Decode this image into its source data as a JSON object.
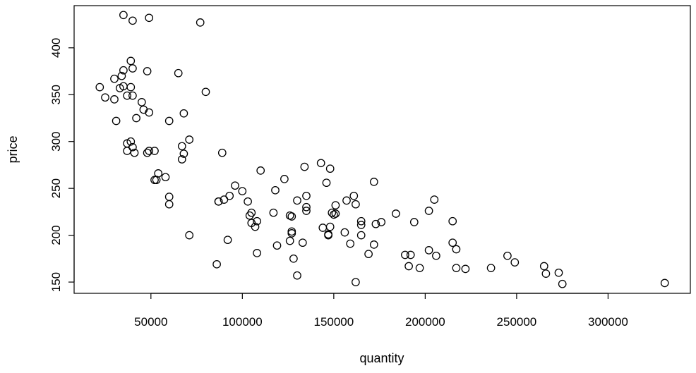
{
  "chart_data": {
    "type": "scatter",
    "xlabel": "quantity",
    "ylabel": "price",
    "xlim": [
      8000,
      345000
    ],
    "ylim": [
      138,
      445
    ],
    "xticks": [
      50000,
      100000,
      150000,
      200000,
      250000,
      300000
    ],
    "yticks": [
      150,
      200,
      250,
      300,
      350,
      400
    ],
    "grid": false,
    "marker": "open-circle",
    "points": [
      [
        35000,
        435
      ],
      [
        49000,
        432
      ],
      [
        77000,
        427
      ],
      [
        40000,
        429
      ],
      [
        39000,
        386
      ],
      [
        40000,
        378
      ],
      [
        35000,
        376
      ],
      [
        48000,
        375
      ],
      [
        65000,
        373
      ],
      [
        30000,
        367
      ],
      [
        34000,
        370
      ],
      [
        22000,
        358
      ],
      [
        33000,
        357
      ],
      [
        35000,
        359
      ],
      [
        39000,
        358
      ],
      [
        80000,
        353
      ],
      [
        37000,
        349
      ],
      [
        40000,
        349
      ],
      [
        25000,
        347
      ],
      [
        30000,
        345
      ],
      [
        45000,
        342
      ],
      [
        46000,
        334
      ],
      [
        49000,
        331
      ],
      [
        68000,
        330
      ],
      [
        42000,
        325
      ],
      [
        31000,
        322
      ],
      [
        60000,
        322
      ],
      [
        71000,
        302
      ],
      [
        37000,
        298
      ],
      [
        39000,
        300
      ],
      [
        40000,
        294
      ],
      [
        67000,
        295
      ],
      [
        37000,
        290
      ],
      [
        48000,
        288
      ],
      [
        49000,
        290
      ],
      [
        52000,
        290
      ],
      [
        41000,
        288
      ],
      [
        68000,
        287
      ],
      [
        67000,
        281
      ],
      [
        89000,
        288
      ],
      [
        54000,
        266
      ],
      [
        58000,
        262
      ],
      [
        52000,
        259
      ],
      [
        53000,
        259
      ],
      [
        60000,
        241
      ],
      [
        60000,
        233
      ],
      [
        71000,
        200
      ],
      [
        110000,
        269
      ],
      [
        123000,
        260
      ],
      [
        96000,
        253
      ],
      [
        100000,
        247
      ],
      [
        118000,
        248
      ],
      [
        93000,
        242
      ],
      [
        90000,
        238
      ],
      [
        87000,
        236
      ],
      [
        87000,
        236
      ],
      [
        103000,
        236
      ],
      [
        104000,
        221
      ],
      [
        105000,
        224
      ],
      [
        105000,
        213
      ],
      [
        107000,
        209
      ],
      [
        108000,
        215
      ],
      [
        117000,
        224
      ],
      [
        108000,
        181
      ],
      [
        119000,
        189
      ],
      [
        92000,
        195
      ],
      [
        86000,
        169
      ],
      [
        134000,
        273
      ],
      [
        143000,
        277
      ],
      [
        148000,
        271
      ],
      [
        146000,
        256
      ],
      [
        135000,
        242
      ],
      [
        130000,
        237
      ],
      [
        135000,
        230
      ],
      [
        135000,
        226
      ],
      [
        126000,
        221
      ],
      [
        127000,
        220
      ],
      [
        127000,
        204
      ],
      [
        127000,
        202
      ],
      [
        126000,
        194
      ],
      [
        133000,
        192
      ],
      [
        128000,
        175
      ],
      [
        130000,
        157
      ],
      [
        149000,
        224
      ],
      [
        151000,
        223
      ],
      [
        151000,
        232
      ],
      [
        150000,
        222
      ],
      [
        144000,
        208
      ],
      [
        148000,
        209
      ],
      [
        147000,
        200
      ],
      [
        147000,
        201
      ],
      [
        157000,
        237
      ],
      [
        161000,
        242
      ],
      [
        162000,
        233
      ],
      [
        172000,
        257
      ],
      [
        165000,
        215
      ],
      [
        165000,
        211
      ],
      [
        165000,
        200
      ],
      [
        156000,
        203
      ],
      [
        159000,
        191
      ],
      [
        173000,
        212
      ],
      [
        176000,
        214
      ],
      [
        172000,
        190
      ],
      [
        169000,
        180
      ],
      [
        162000,
        150
      ],
      [
        184000,
        223
      ],
      [
        194000,
        214
      ],
      [
        202000,
        226
      ],
      [
        205000,
        238
      ],
      [
        215000,
        215
      ],
      [
        189000,
        179
      ],
      [
        192000,
        179
      ],
      [
        191000,
        167
      ],
      [
        197000,
        165
      ],
      [
        202000,
        184
      ],
      [
        206000,
        178
      ],
      [
        215000,
        192
      ],
      [
        217000,
        185
      ],
      [
        217000,
        165
      ],
      [
        222000,
        164
      ],
      [
        236000,
        165
      ],
      [
        245000,
        178
      ],
      [
        249000,
        171
      ],
      [
        265000,
        167
      ],
      [
        266000,
        159
      ],
      [
        273000,
        160
      ],
      [
        275000,
        148
      ],
      [
        331000,
        149
      ]
    ]
  }
}
